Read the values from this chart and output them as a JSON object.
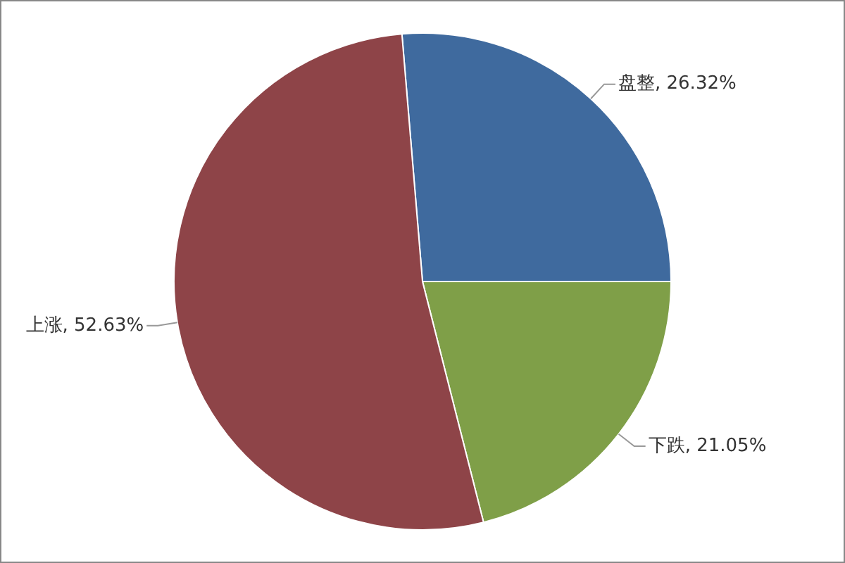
{
  "chart_data": {
    "type": "pie",
    "categories": [
      "盘整",
      "下跌",
      "上涨"
    ],
    "values": [
      26.32,
      21.05,
      52.63
    ],
    "value_labels": [
      "26.32%",
      "21.05%",
      "52.63%"
    ],
    "colors": [
      "#3f6a9e",
      "#7f9f48",
      "#8e4448"
    ],
    "legend": false
  }
}
